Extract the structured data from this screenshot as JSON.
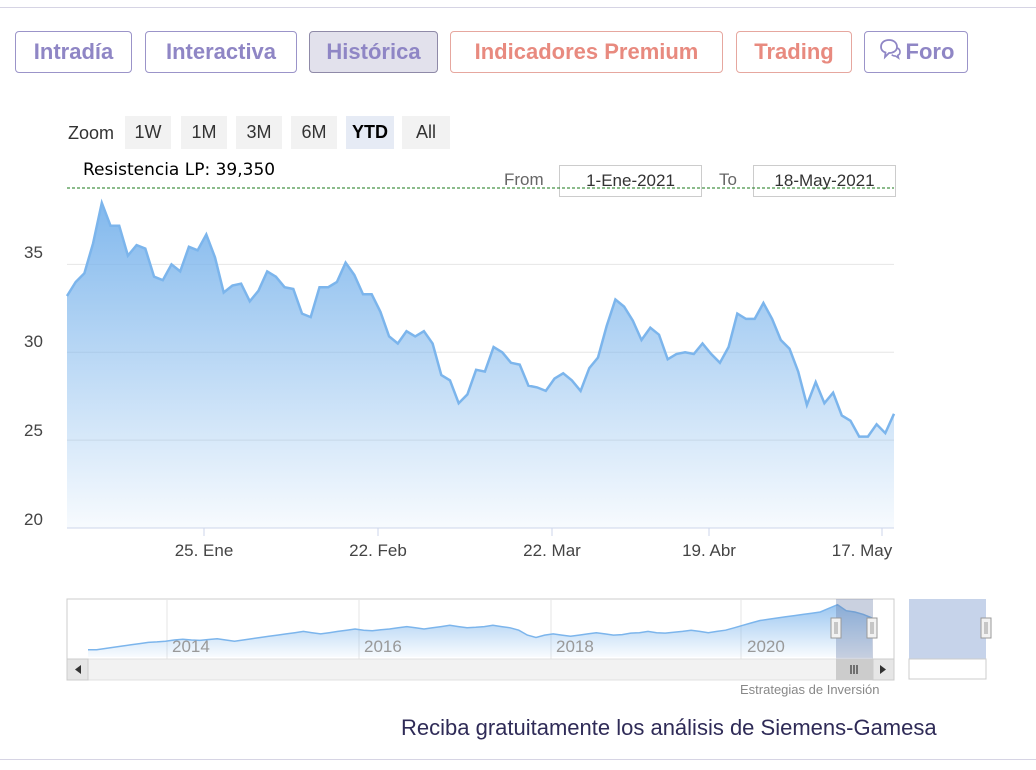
{
  "tabs": [
    {
      "label": "Intradía",
      "state": "normal"
    },
    {
      "label": "Interactiva",
      "state": "normal"
    },
    {
      "label": "Histórica",
      "state": "active"
    },
    {
      "label": "Indicadores Premium",
      "state": "premium"
    },
    {
      "label": "Trading",
      "state": "premium"
    },
    {
      "label": "Foro",
      "state": "normal",
      "icon": "chat-bubble-icon"
    }
  ],
  "zoom": {
    "label": "Zoom",
    "buttons": [
      "1W",
      "1M",
      "3M",
      "6M",
      "YTD",
      "All"
    ],
    "selected": "YTD"
  },
  "range": {
    "from_label": "From",
    "from_value": "1-Ene-2021",
    "to_label": "To",
    "to_value": "18-May-2021"
  },
  "annotation": {
    "text": "Resistencia LP: 39,350",
    "value": 39.35,
    "color": "#1a7a1a"
  },
  "chart_data": {
    "type": "area",
    "y_ticks": [
      "35",
      "30",
      "25",
      "20"
    ],
    "x_ticks": [
      "25. Ene",
      "22. Feb",
      "22. Mar",
      "19. Abr",
      "17. May"
    ],
    "ylim": [
      20,
      40.2
    ],
    "grid": true,
    "series": [
      {
        "values": [
          33.2,
          34.0,
          34.5,
          36.2,
          38.5,
          37.2,
          37.2,
          35.5,
          36.1,
          35.9,
          34.3,
          34.1,
          35.0,
          34.6,
          36.0,
          35.8,
          36.7,
          35.4,
          33.4,
          33.8,
          33.9,
          32.9,
          33.5,
          34.6,
          34.3,
          33.7,
          33.6,
          32.2,
          32.0,
          33.7,
          33.7,
          34.0,
          35.1,
          34.4,
          33.3,
          33.3,
          32.3,
          30.9,
          30.5,
          31.2,
          30.9,
          31.2,
          30.5,
          28.7,
          28.4,
          27.1,
          27.6,
          29.0,
          28.9,
          30.3,
          30.0,
          29.4,
          29.3,
          28.1,
          28.0,
          27.8,
          28.5,
          28.8,
          28.4,
          27.8,
          29.1,
          29.7,
          31.5,
          33.0,
          32.6,
          31.8,
          30.7,
          31.4,
          31.0,
          29.6,
          29.9,
          30.0,
          29.9,
          30.5,
          29.9,
          29.4,
          30.3,
          32.2,
          31.9,
          31.9,
          32.8,
          31.9,
          30.7,
          30.2,
          28.9,
          27.0,
          28.3,
          27.1,
          27.7,
          26.4,
          26.1,
          25.2,
          25.2,
          25.9,
          25.4,
          26.5
        ],
        "color": "#7cb5ec"
      }
    ]
  },
  "navigator": {
    "x_ticks": [
      "2014",
      "2016",
      "2018",
      "2020"
    ],
    "values": [
      21,
      21,
      21.5,
      22,
      22.5,
      23,
      23.5,
      24,
      24.2,
      24.5,
      25,
      25.3,
      25,
      24.8,
      25.2,
      25.5,
      25,
      24.5,
      25,
      25.5,
      26,
      26.5,
      27,
      27.5,
      28,
      28.5,
      28,
      27.5,
      28,
      28.5,
      29,
      29.5,
      29,
      28.8,
      29.2,
      29.5,
      30,
      30.5,
      30,
      29.5,
      30,
      30.5,
      31,
      30.5,
      30,
      30.2,
      30.5,
      31,
      30.5,
      30,
      29,
      27,
      26,
      27,
      27.5,
      27,
      26.5,
      27,
      27.5,
      28,
      27.5,
      27,
      27.2,
      27.8,
      28,
      28.5,
      28,
      27.8,
      28.2,
      28.5,
      29,
      28.5,
      28,
      28.5,
      29,
      30,
      31,
      32,
      33,
      33.5,
      34,
      34.5,
      35,
      35.5,
      36,
      36.5,
      38,
      39.5,
      37,
      36.5,
      35.5,
      34
    ]
  },
  "credit": "Estrategias de Inversión",
  "footer": "Reciba gratuitamente los análisis de Siemens-Gamesa"
}
